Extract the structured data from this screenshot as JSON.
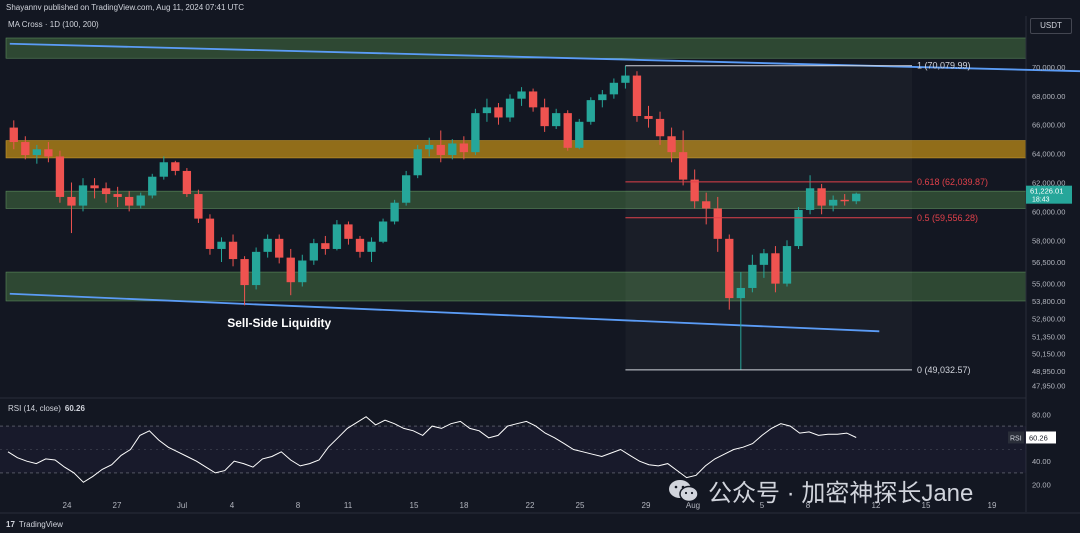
{
  "header": {
    "published_text": "Shayannv published on TradingView.com, Aug 11, 2024 07:41 UTC",
    "indicator": "MA Cross · 1D (100, 200)",
    "currency": "USDT"
  },
  "footer": {
    "brand": "TradingView"
  },
  "watermark": {
    "text": "公众号 · 加密神探长Jane"
  },
  "colors": {
    "background": "#131722",
    "up_candle": "#26a69a",
    "down_candle": "#ef5350",
    "supply_zone": "#a87c18",
    "demand_zone": "#3a5e3a",
    "channel_line": "#5b9cf6",
    "fib_line": "#e0404a",
    "rsi_line": "#ffffff"
  },
  "chart_data": [
    {
      "type": "candlestick",
      "title": "",
      "y_axis": {
        "label": "USDT",
        "ticks": [
          70000,
          68000,
          66000,
          64000,
          62000,
          60000,
          58000,
          56500,
          55000,
          53800,
          52600,
          51350,
          50150,
          48950,
          47950
        ],
        "tick_labels": [
          "70,000.00",
          "68,000.00",
          "66,000.00",
          "64,000.00",
          "62,000.00",
          "60,000.00",
          "58,000.00",
          "56,500.00",
          "55,000.00",
          "53,800.00",
          "52,600.00",
          "51,350.00",
          "50,150.00",
          "48,950.00",
          "47,950.00"
        ],
        "ylim": [
          47500,
          72000
        ]
      },
      "x_axis": {
        "tick_labels": [
          "24",
          "27",
          "Jul",
          "4",
          "8",
          "11",
          "15",
          "18",
          "22",
          "25",
          "29",
          "Aug",
          "5",
          "8",
          "12",
          "15",
          "19"
        ]
      },
      "candles": [
        {
          "o": 65800,
          "h": 66300,
          "l": 64300,
          "c": 64800
        },
        {
          "o": 64800,
          "h": 65200,
          "l": 63600,
          "c": 63900
        },
        {
          "o": 63900,
          "h": 64600,
          "l": 63300,
          "c": 64300
        },
        {
          "o": 64300,
          "h": 64800,
          "l": 63400,
          "c": 63800
        },
        {
          "o": 63800,
          "h": 64200,
          "l": 60600,
          "c": 61000
        },
        {
          "o": 61000,
          "h": 62000,
          "l": 58500,
          "c": 60400
        },
        {
          "o": 60400,
          "h": 62300,
          "l": 60000,
          "c": 61800
        },
        {
          "o": 61800,
          "h": 62300,
          "l": 60900,
          "c": 61600
        },
        {
          "o": 61600,
          "h": 62000,
          "l": 60600,
          "c": 61200
        },
        {
          "o": 61200,
          "h": 61700,
          "l": 60300,
          "c": 61000
        },
        {
          "o": 61000,
          "h": 61400,
          "l": 60000,
          "c": 60400
        },
        {
          "o": 60400,
          "h": 61300,
          "l": 60200,
          "c": 61100
        },
        {
          "o": 61100,
          "h": 62600,
          "l": 60900,
          "c": 62400
        },
        {
          "o": 62400,
          "h": 63800,
          "l": 62200,
          "c": 63400
        },
        {
          "o": 63400,
          "h": 63500,
          "l": 62500,
          "c": 62800
        },
        {
          "o": 62800,
          "h": 63000,
          "l": 61000,
          "c": 61200
        },
        {
          "o": 61200,
          "h": 61500,
          "l": 59200,
          "c": 59500
        },
        {
          "o": 59500,
          "h": 59800,
          "l": 57000,
          "c": 57400
        },
        {
          "o": 57400,
          "h": 58200,
          "l": 56500,
          "c": 57900
        },
        {
          "o": 57900,
          "h": 58400,
          "l": 56200,
          "c": 56700
        },
        {
          "o": 56700,
          "h": 56900,
          "l": 53500,
          "c": 54900
        },
        {
          "o": 54900,
          "h": 57500,
          "l": 54600,
          "c": 57200
        },
        {
          "o": 57200,
          "h": 58400,
          "l": 56800,
          "c": 58100
        },
        {
          "o": 58100,
          "h": 58400,
          "l": 56400,
          "c": 56800
        },
        {
          "o": 56800,
          "h": 57400,
          "l": 54200,
          "c": 55100
        },
        {
          "o": 55100,
          "h": 57000,
          "l": 54800,
          "c": 56600
        },
        {
          "o": 56600,
          "h": 58100,
          "l": 56300,
          "c": 57800
        },
        {
          "o": 57800,
          "h": 58300,
          "l": 57000,
          "c": 57400
        },
        {
          "o": 57400,
          "h": 59400,
          "l": 57300,
          "c": 59100
        },
        {
          "o": 59100,
          "h": 59300,
          "l": 57700,
          "c": 58100
        },
        {
          "o": 58100,
          "h": 58300,
          "l": 56800,
          "c": 57200
        },
        {
          "o": 57200,
          "h": 58200,
          "l": 56500,
          "c": 57900
        },
        {
          "o": 57900,
          "h": 59500,
          "l": 57800,
          "c": 59300
        },
        {
          "o": 59300,
          "h": 60800,
          "l": 59100,
          "c": 60600
        },
        {
          "o": 60600,
          "h": 62800,
          "l": 60400,
          "c": 62500
        },
        {
          "o": 62500,
          "h": 64600,
          "l": 62300,
          "c": 64300
        },
        {
          "o": 64300,
          "h": 65100,
          "l": 63800,
          "c": 64600
        },
        {
          "o": 64600,
          "h": 65600,
          "l": 63400,
          "c": 63900
        },
        {
          "o": 63900,
          "h": 65000,
          "l": 63600,
          "c": 64700
        },
        {
          "o": 64700,
          "h": 65200,
          "l": 63600,
          "c": 64100
        },
        {
          "o": 64100,
          "h": 67100,
          "l": 63900,
          "c": 66800
        },
        {
          "o": 66800,
          "h": 67800,
          "l": 66200,
          "c": 67200
        },
        {
          "o": 67200,
          "h": 67500,
          "l": 66000,
          "c": 66500
        },
        {
          "o": 66500,
          "h": 68100,
          "l": 66200,
          "c": 67800
        },
        {
          "o": 67800,
          "h": 68600,
          "l": 67300,
          "c": 68300
        },
        {
          "o": 68300,
          "h": 68500,
          "l": 66900,
          "c": 67200
        },
        {
          "o": 67200,
          "h": 67800,
          "l": 65500,
          "c": 65900
        },
        {
          "o": 65900,
          "h": 67100,
          "l": 65700,
          "c": 66800
        },
        {
          "o": 66800,
          "h": 67000,
          "l": 64200,
          "c": 64400
        },
        {
          "o": 64400,
          "h": 66400,
          "l": 64300,
          "c": 66200
        },
        {
          "o": 66200,
          "h": 67900,
          "l": 66000,
          "c": 67700
        },
        {
          "o": 67700,
          "h": 68400,
          "l": 67200,
          "c": 68100
        },
        {
          "o": 68100,
          "h": 69200,
          "l": 67800,
          "c": 68900
        },
        {
          "o": 68900,
          "h": 70079.99,
          "l": 68500,
          "c": 69400
        },
        {
          "o": 69400,
          "h": 69700,
          "l": 66200,
          "c": 66600
        },
        {
          "o": 66600,
          "h": 67300,
          "l": 65800,
          "c": 66400
        },
        {
          "o": 66400,
          "h": 66900,
          "l": 64600,
          "c": 65200
        },
        {
          "o": 65200,
          "h": 65800,
          "l": 63400,
          "c": 64100
        },
        {
          "o": 64100,
          "h": 65600,
          "l": 61800,
          "c": 62200
        },
        {
          "o": 62200,
          "h": 62900,
          "l": 60200,
          "c": 60700
        },
        {
          "o": 60700,
          "h": 61300,
          "l": 59100,
          "c": 60200
        },
        {
          "o": 60200,
          "h": 61000,
          "l": 57200,
          "c": 58100
        },
        {
          "o": 58100,
          "h": 58400,
          "l": 53200,
          "c": 54000
        },
        {
          "o": 54000,
          "h": 55800,
          "l": 49032.57,
          "c": 54700
        },
        {
          "o": 54700,
          "h": 57000,
          "l": 54400,
          "c": 56300
        },
        {
          "o": 56300,
          "h": 57400,
          "l": 55400,
          "c": 57100
        },
        {
          "o": 57100,
          "h": 57600,
          "l": 54400,
          "c": 55000
        },
        {
          "o": 55000,
          "h": 58000,
          "l": 54800,
          "c": 57600
        },
        {
          "o": 57600,
          "h": 60300,
          "l": 57400,
          "c": 60100
        },
        {
          "o": 60100,
          "h": 62500,
          "l": 59800,
          "c": 61600
        },
        {
          "o": 61600,
          "h": 61900,
          "l": 59800,
          "c": 60400
        },
        {
          "o": 60400,
          "h": 61100,
          "l": 60000,
          "c": 60800
        },
        {
          "o": 60800,
          "h": 61200,
          "l": 60400,
          "c": 60700
        },
        {
          "o": 60700,
          "h": 61300,
          "l": 60500,
          "c": 61226.01
        }
      ],
      "zones": [
        {
          "name": "top-zone",
          "from": 70600,
          "to": 72000
        },
        {
          "name": "supply-zone",
          "from": 63700,
          "to": 64900
        },
        {
          "name": "demand-zone-upper",
          "from": 60200,
          "to": 61400
        },
        {
          "name": "demand-zone-lower",
          "from": 53800,
          "to": 55800
        }
      ],
      "fib_levels": [
        {
          "label": "1 (70,079.99)",
          "value": 70079.99
        },
        {
          "label": "0.618 (62,039.87)",
          "value": 62039.87
        },
        {
          "label": "0.5 (59,556.28)",
          "value": 59556.28
        },
        {
          "label": "0 (49,032.57)",
          "value": 49032.57
        }
      ],
      "channel": [
        {
          "name": "upper-line",
          "from": {
            "candle": 0,
            "value": 71600
          },
          "to": {
            "candle": 95,
            "value": 69650
          }
        },
        {
          "name": "lower-line",
          "from": {
            "candle": 0,
            "value": 54300
          },
          "to": {
            "candle": 75,
            "value": 51700
          }
        }
      ],
      "annotations": [
        {
          "text": "Sell-Side Liquidity",
          "near_candle": 23,
          "value": 52000
        }
      ],
      "last_price": {
        "value": "61,226.01",
        "time": "18:43"
      }
    },
    {
      "type": "line",
      "title": "RSI (14, close)",
      "current_value": "60.26",
      "y_ticks": [
        "80.00",
        "60.00",
        "40.00",
        "20.00"
      ],
      "ylim": [
        12,
        88
      ],
      "bands": [
        70,
        30
      ],
      "values": [
        48,
        43,
        40,
        38,
        42,
        41,
        35,
        30,
        22,
        27,
        33,
        37,
        45,
        50,
        62,
        66,
        58,
        52,
        48,
        44,
        40,
        35,
        30,
        32,
        40,
        38,
        35,
        42,
        44,
        48,
        41,
        36,
        38,
        41,
        52,
        60,
        68,
        73,
        78,
        71,
        75,
        72,
        68,
        66,
        62,
        70,
        68,
        72,
        74,
        68,
        66,
        60,
        62,
        70,
        72,
        74,
        70,
        64,
        60,
        55,
        50,
        48,
        46,
        44,
        47,
        50,
        45,
        40,
        37,
        36,
        38,
        32,
        26,
        28,
        36,
        42,
        46,
        50,
        52,
        55,
        62,
        68,
        72,
        70,
        64,
        65,
        62,
        63,
        63,
        64,
        60.26
      ]
    }
  ]
}
